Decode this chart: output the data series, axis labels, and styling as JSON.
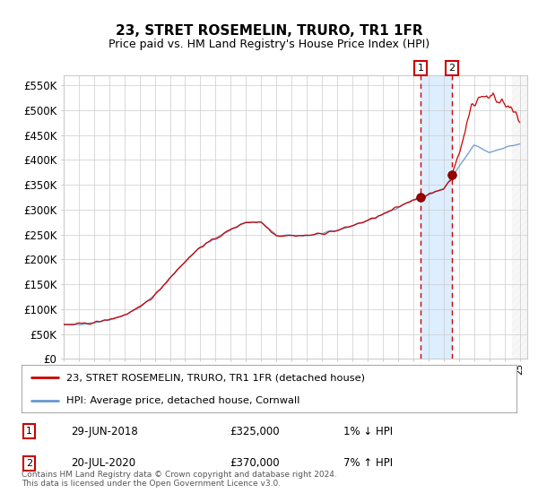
{
  "title": "23, STRET ROSEMELIN, TRURO, TR1 1FR",
  "subtitle": "Price paid vs. HM Land Registry's House Price Index (HPI)",
  "ylim": [
    0,
    570000
  ],
  "xlim_start": 1995.0,
  "xlim_end": 2025.5,
  "legend_line1": "23, STRET ROSEMELIN, TRURO, TR1 1FR (detached house)",
  "legend_line2": "HPI: Average price, detached house, Cornwall",
  "sale1_date": "29-JUN-2018",
  "sale1_price": "£325,000",
  "sale1_hpi": "1% ↓ HPI",
  "sale2_date": "20-JUL-2020",
  "sale2_price": "£370,000",
  "sale2_hpi": "7% ↑ HPI",
  "footnote": "Contains HM Land Registry data © Crown copyright and database right 2024.\nThis data is licensed under the Open Government Licence v3.0.",
  "line_color_red": "#cc0000",
  "line_color_blue": "#6699cc",
  "vline_color": "#cc0000",
  "highlight_color": "#ddeeff",
  "sale1_x": 2018.5,
  "sale1_y": 325000,
  "sale2_x": 2020.55,
  "sale2_y": 370000,
  "background_color": "#ffffff",
  "grid_color": "#cccccc"
}
